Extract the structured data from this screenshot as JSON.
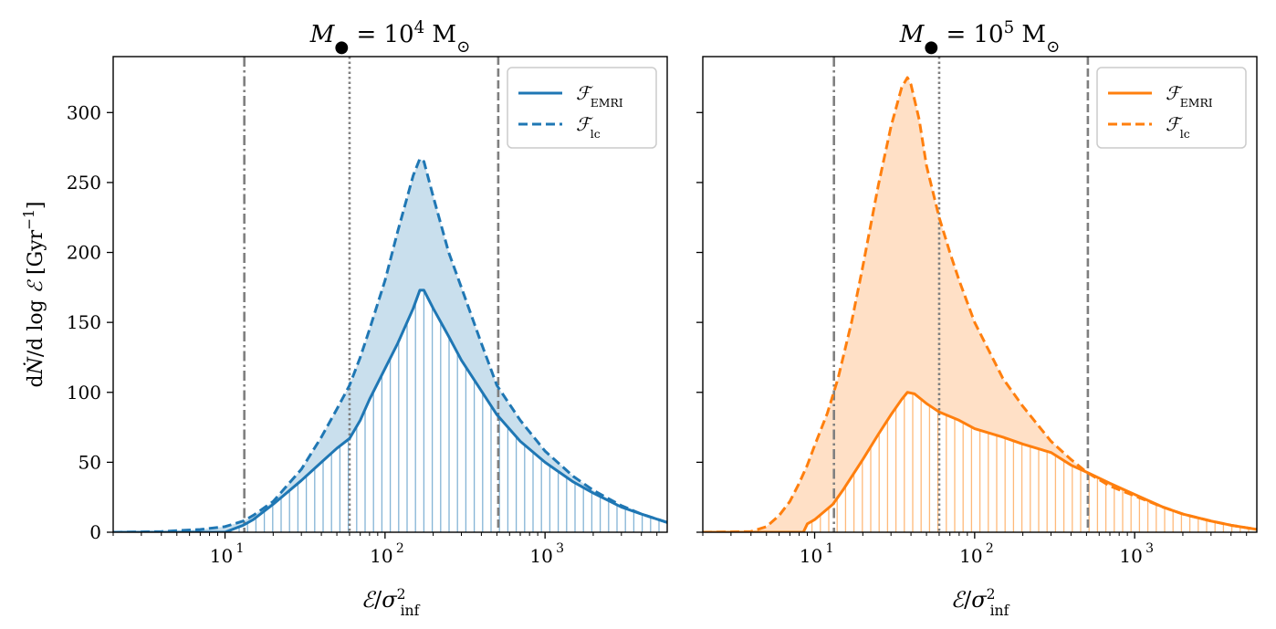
{
  "chart_data": [
    {
      "type": "line",
      "title_html": "<tspan font-style='italic'>M</tspan><tspan baseline-shift='sub' font-size='70%'>●</tspan> = 10<tspan baseline-shift='super' font-size='70%'>4</tspan> M<tspan baseline-shift='sub' font-size='70%'>⊙</tspan>",
      "xlabel_html": "<tspan font-style='italic'>ℰ</tspan>/<tspan font-style='italic'>σ</tspan><tspan baseline-shift='super' font-size='65%'>2</tspan><tspan dx='-6' baseline-shift='sub' font-size='65%'>inf</tspan>",
      "ylabel_html": "d<tspan font-style='italic'>Ṅ</tspan>/d log <tspan font-style='italic'>ℰ</tspan> [Gyr<tspan baseline-shift='super' font-size='70%'>−1</tspan>]",
      "x_scale": "log",
      "xlim": [
        2,
        5800
      ],
      "ylim": [
        0,
        340
      ],
      "x_tick_labels": [
        "10",
        "10",
        "10"
      ],
      "x_tick_label_exps": [
        "1",
        "2",
        "3"
      ],
      "x_ticks": [
        10,
        100,
        1000
      ],
      "y_ticks": [
        0,
        50,
        100,
        150,
        200,
        250,
        300
      ],
      "y_tick_labels": [
        "0",
        "50",
        "100",
        "150",
        "200",
        "250",
        "300"
      ],
      "color": "#1f77b4",
      "vlines": [
        {
          "x": 13.2,
          "style": "dashdot"
        },
        {
          "x": 60,
          "style": "dotted"
        },
        {
          "x": 510,
          "style": "dashed"
        }
      ],
      "legend": {
        "position": "upper right",
        "entries": [
          "ℱ_EMRI",
          "ℱ_lc"
        ]
      },
      "series": [
        {
          "name": "F_EMRI",
          "style": "solid",
          "x": [
            2,
            5,
            10,
            13,
            15,
            20,
            30,
            40,
            50,
            60,
            70,
            80,
            100,
            120,
            150,
            165,
            175,
            200,
            250,
            300,
            400,
            500,
            700,
            1000,
            1500,
            2000,
            3000,
            4000,
            5800
          ],
          "y": [
            0,
            0,
            0,
            5,
            9,
            20,
            37,
            50,
            60,
            67,
            80,
            95,
            117,
            135,
            160,
            173,
            173,
            160,
            140,
            123,
            101,
            84,
            65,
            50,
            36,
            28,
            18,
            13,
            7
          ]
        },
        {
          "name": "F_lc",
          "style": "dashed",
          "x": [
            2,
            4,
            7,
            10,
            13,
            15,
            20,
            30,
            40,
            50,
            60,
            70,
            80,
            100,
            120,
            150,
            165,
            175,
            200,
            250,
            300,
            400,
            500,
            700,
            1000,
            1500,
            2000,
            3000,
            4000,
            5800
          ],
          "y": [
            0,
            0.5,
            2,
            4,
            8,
            12,
            22,
            45,
            68,
            88,
            105,
            125,
            145,
            180,
            215,
            255,
            267,
            265,
            240,
            200,
            175,
            135,
            105,
            80,
            58,
            40,
            30,
            19,
            13,
            7
          ]
        }
      ]
    },
    {
      "type": "line",
      "title_html": "<tspan font-style='italic'>M</tspan><tspan baseline-shift='sub' font-size='70%'>●</tspan> = 10<tspan baseline-shift='super' font-size='70%'>5</tspan> M<tspan baseline-shift='sub' font-size='70%'>⊙</tspan>",
      "xlabel_html": "<tspan font-style='italic'>ℰ</tspan>/<tspan font-style='italic'>σ</tspan><tspan baseline-shift='super' font-size='65%'>2</tspan><tspan dx='-6' baseline-shift='sub' font-size='65%'>inf</tspan>",
      "ylabel_html": "",
      "x_scale": "log",
      "xlim": [
        2,
        5800
      ],
      "ylim": [
        0,
        340
      ],
      "x_tick_labels": [
        "10",
        "10",
        "10"
      ],
      "x_tick_label_exps": [
        "1",
        "2",
        "3"
      ],
      "x_ticks": [
        10,
        100,
        1000
      ],
      "y_ticks": [
        0,
        50,
        100,
        150,
        200,
        250,
        300
      ],
      "y_tick_labels": [],
      "color": "#ff7f0e",
      "vlines": [
        {
          "x": 13.2,
          "style": "dashdot"
        },
        {
          "x": 60,
          "style": "dotted"
        },
        {
          "x": 510,
          "style": "dashed"
        }
      ],
      "legend": {
        "position": "upper right",
        "entries": [
          "ℱ_EMRI",
          "ℱ_lc"
        ]
      },
      "series": [
        {
          "name": "F_EMRI",
          "style": "solid",
          "x": [
            2,
            8.5,
            9,
            10,
            13,
            15,
            20,
            25,
            30,
            35,
            38,
            42,
            50,
            60,
            80,
            100,
            150,
            200,
            300,
            400,
            500,
            700,
            1000,
            1500,
            2000,
            3000,
            4000,
            5800
          ],
          "y": [
            0,
            0,
            6,
            9,
            20,
            30,
            52,
            70,
            84,
            95,
            100,
            99,
            92,
            86,
            80,
            74,
            68,
            63,
            57,
            48,
            43,
            35,
            27,
            18,
            13,
            8,
            5,
            2
          ]
        },
        {
          "name": "F_lc",
          "style": "dashed",
          "x": [
            2,
            4,
            5,
            6,
            7,
            8,
            9,
            10,
            12,
            14,
            17,
            20,
            25,
            30,
            35,
            38,
            40,
            45,
            50,
            60,
            70,
            80,
            100,
            150,
            200,
            300,
            400,
            500,
            700,
            1000,
            1500,
            2000,
            3000,
            4000,
            5800
          ],
          "y": [
            0,
            0.5,
            4,
            12,
            22,
            35,
            48,
            62,
            85,
            110,
            150,
            190,
            248,
            290,
            318,
            325,
            320,
            295,
            262,
            225,
            200,
            180,
            150,
            110,
            90,
            65,
            52,
            43,
            33,
            26,
            18,
            13,
            8,
            5,
            2
          ]
        }
      ]
    }
  ]
}
